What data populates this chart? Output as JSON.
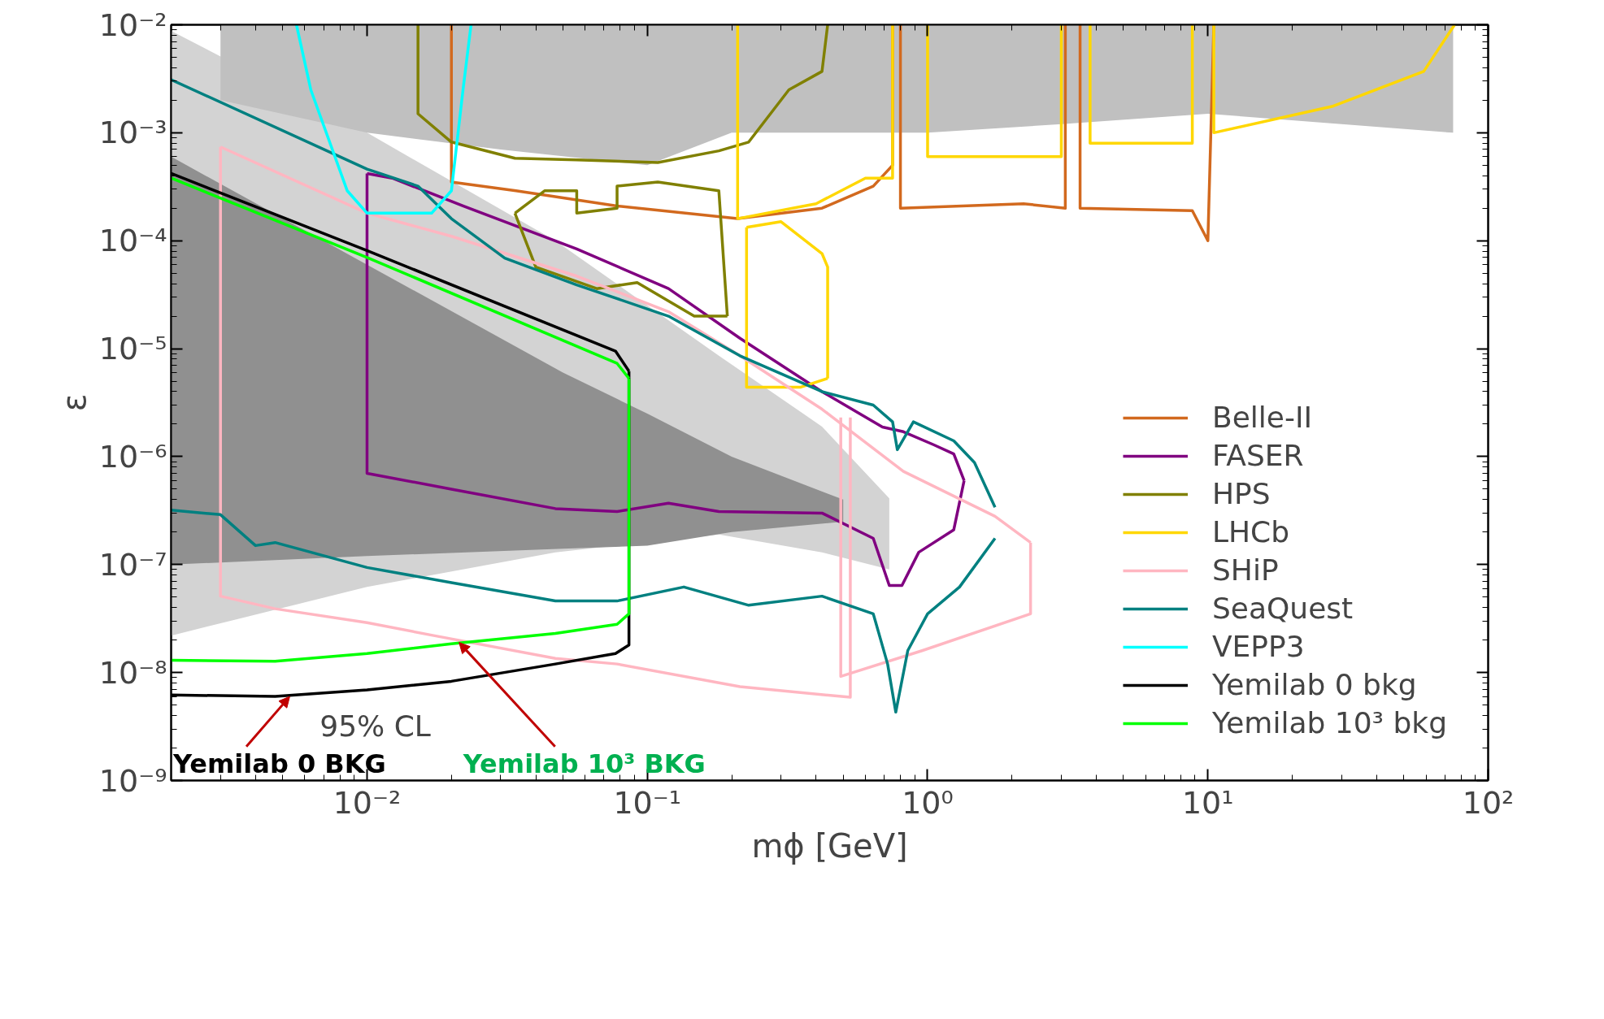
{
  "chart_data": {
    "type": "line",
    "xlabel": "mϕ [GeV]",
    "ylabel": "ε",
    "log": "xy",
    "xlim": [
      0.002,
      100
    ],
    "ylim": [
      1e-09,
      0.01
    ],
    "xticks": [
      {
        "value": 0.01,
        "label": "10⁻²"
      },
      {
        "value": 0.1,
        "label": "10⁻¹"
      },
      {
        "value": 1,
        "label": "10⁰"
      },
      {
        "value": 10,
        "label": "10¹"
      },
      {
        "value": 100,
        "label": "10²"
      }
    ],
    "yticks": [
      {
        "value": 1e-09,
        "label": "10⁻⁹"
      },
      {
        "value": 1e-08,
        "label": "10⁻⁸"
      },
      {
        "value": 1e-07,
        "label": "10⁻⁷"
      },
      {
        "value": 1e-06,
        "label": "10⁻⁶"
      },
      {
        "value": 1e-05,
        "label": "10⁻⁵"
      },
      {
        "value": 0.0001,
        "label": "10⁻⁴"
      },
      {
        "value": 0.001,
        "label": "10⁻³"
      },
      {
        "value": 0.01,
        "label": "10⁻²"
      }
    ],
    "legend": "bottom right",
    "grid": false,
    "series": [
      {
        "type": "area",
        "color": "#d3d3d3",
        "x": [
          0.002,
          0.01,
          0.047,
          0.18,
          0.42,
          0.73
        ],
        "values": [
          null,
          null,
          null,
          null,
          null,
          null
        ],
        "upper": [
          0.0088,
          0.001,
          0.0001,
          8.6e-06,
          1.9e-06,
          4.1e-07
        ],
        "lower": [
          2.2e-08,
          6.2e-08,
          1.3e-07,
          1.9e-07,
          1.3e-07,
          9e-08
        ]
      },
      {
        "type": "area",
        "color": "#c0c0c0",
        "x": [
          0.003,
          0.01,
          0.03,
          0.1,
          0.2,
          0.5,
          1,
          3,
          10,
          30,
          75
        ],
        "values": [
          null,
          null,
          null,
          null,
          null,
          null,
          null,
          null,
          null,
          null,
          null
        ],
        "upper": [
          0.01,
          0.01,
          0.01,
          0.01,
          0.01,
          0.01,
          0.01,
          0.01,
          0.01,
          0.01,
          0.01
        ],
        "lower": [
          0.002,
          0.001,
          0.0007,
          0.0005,
          0.001,
          0.001,
          0.001,
          0.0012,
          0.0015,
          0.0012,
          0.001
        ]
      },
      {
        "type": "area",
        "color": "#909090",
        "x": [
          0.002,
          0.01,
          0.05,
          0.1,
          0.2,
          0.5
        ],
        "values": [
          null,
          null,
          null,
          null,
          null,
          null
        ],
        "upper": [
          0.0006,
          6e-05,
          6e-06,
          2.5e-06,
          1e-06,
          4e-07
        ],
        "lower": [
          1e-07,
          1.2e-07,
          1.4e-07,
          1.5e-07,
          2e-07,
          2.5e-07
        ]
      },
      {
        "name": "Belle-II",
        "color": "#d2691e",
        "x": [
          0.02,
          0.02,
          0.034,
          0.078,
          0.21,
          0.42,
          0.64,
          0.75,
          0.75,
          null,
          0.8,
          0.8,
          2.2,
          3.1,
          3.1,
          null,
          3.5,
          3.5,
          8.8,
          10,
          10.5
        ],
        "values": [
          0.01,
          0.00035,
          0.00029,
          0.00021,
          0.00016,
          0.0002,
          0.00032,
          0.0005,
          0.01,
          null,
          0.01,
          0.0002,
          0.00022,
          0.0002,
          0.01,
          null,
          0.01,
          0.0002,
          0.00019,
          0.0001,
          0.01
        ]
      },
      {
        "name": "FASER",
        "color": "#800080",
        "x": [
          0.01,
          0.01,
          0.02,
          0.047,
          0.078,
          0.119,
          0.18,
          0.42,
          0.64,
          0.73,
          0.81,
          0.93,
          1.24,
          1.35
        ],
        "values": [
          0.00042,
          7e-07,
          5e-07,
          3.3e-07,
          3.1e-07,
          3.7e-07,
          3.1e-07,
          3e-07,
          1.75e-07,
          6.4e-08,
          6.4e-08,
          1.3e-07,
          2.1e-07,
          6e-07
        ]
      },
      {
        "color": "#800080",
        "x": [
          0.01,
          0.0123,
          0.022,
          0.056,
          0.119,
          0.214,
          0.42,
          0.69,
          0.82,
          1.05,
          1.24,
          1.35
        ],
        "values": [
          0.00042,
          0.00038,
          0.00021,
          8.4e-05,
          3.6e-05,
          1.25e-05,
          4e-06,
          1.88e-06,
          1.7e-06,
          1.29e-06,
          1.06e-06,
          6e-07
        ]
      },
      {
        "name": "HPS",
        "color": "#808000",
        "x": [
          0.0152,
          0.0152,
          0.02,
          0.0337,
          0.056,
          0.109,
          0.18,
          0.23,
          0.32,
          0.42,
          0.44
        ],
        "values": [
          0.01,
          0.0015,
          0.00082,
          0.00058,
          0.00056,
          0.00053,
          0.00068,
          0.00082,
          0.0025,
          0.0037,
          0.01
        ]
      },
      {
        "color": "#808000",
        "x": [
          0.0337,
          0.043,
          0.056,
          0.056,
          0.078,
          0.078,
          0.109,
          0.18,
          0.193
        ],
        "values": [
          0.00018,
          0.00029,
          0.00029,
          0.00018,
          0.0002,
          0.00032,
          0.00035,
          0.00029,
          2e-05
        ]
      },
      {
        "color": "#808000",
        "x": [
          0.0337,
          0.04,
          0.066,
          0.092,
          0.147,
          0.193
        ],
        "values": [
          0.00018,
          5.7e-05,
          3.6e-05,
          4.1e-05,
          2e-05,
          2e-05
        ]
      },
      {
        "name": "LHCb",
        "color": "#ffd700",
        "x": [
          0.21,
          0.21,
          0.4,
          0.6,
          0.75,
          0.75,
          null,
          1,
          1,
          3,
          3,
          null,
          3.8,
          3.8,
          8.8,
          8.8,
          null,
          10.5,
          10.5,
          27.7,
          58.9,
          75.9
        ],
        "values": [
          0.01,
          0.00016,
          0.00022,
          0.00038,
          0.00038,
          0.01,
          null,
          0.01,
          0.0006,
          0.0006,
          0.01,
          null,
          0.01,
          0.0008,
          0.0008,
          0.01,
          null,
          0.01,
          0.001,
          0.00175,
          0.0037,
          0.01
        ]
      },
      {
        "color": "#ffd700",
        "x": [
          0.226,
          0.3,
          0.42,
          0.44,
          0.44
        ],
        "values": [
          0.000133,
          0.00015,
          7.6e-05,
          5.7e-05,
          5.3e-06
        ]
      },
      {
        "color": "#ffd700",
        "x": [
          0.226,
          0.226,
          0.353,
          0.44
        ],
        "values": [
          0.000133,
          4.4e-06,
          4.4e-06,
          5.3e-06
        ]
      },
      {
        "name": "SHiP",
        "color": "#ffb6c1",
        "x": [
          0.003,
          0.003,
          0.0047,
          0.01,
          0.0173,
          0.047,
          0.078,
          0.214,
          0.53,
          0.53
        ],
        "values": [
          0.00074,
          5.1e-08,
          3.9e-08,
          2.9e-08,
          2.2e-08,
          1.35e-08,
          1.2e-08,
          7.4e-09,
          5.9e-09,
          2.3e-06
        ]
      },
      {
        "color": "#ffb6c1",
        "x": [
          0.49,
          0.49,
          0.96,
          2.33,
          2.33
        ],
        "values": [
          2.3e-06,
          9.2e-09,
          1.6e-08,
          3.5e-08,
          1.6e-07
        ]
      },
      {
        "color": "#ffb6c1",
        "x": [
          0.003,
          0.01,
          0.02,
          0.056,
          0.119,
          0.214,
          0.42,
          0.82,
          1.74,
          2.33
        ],
        "values": [
          0.00074,
          0.00018,
          0.00011,
          4.7e-05,
          2.2e-05,
          8.6e-06,
          2.75e-06,
          7.3e-07,
          2.8e-07,
          1.6e-07
        ]
      },
      {
        "name": "SeaQuest",
        "color": "#008080",
        "x": [
          0.002,
          0.01,
          0.0152,
          0.02,
          0.031,
          0.056,
          0.119,
          0.214,
          0.42,
          0.64,
          0.75,
          0.78,
          0.89,
          1.24,
          1.47,
          1.74
        ],
        "values": [
          0.0031,
          0.00046,
          0.00032,
          0.00016,
          6.9e-05,
          3.9e-05,
          2e-05,
          8.6e-06,
          4e-06,
          3e-06,
          2.1e-06,
          1.16e-06,
          2.1e-06,
          1.4e-06,
          8.8e-07,
          3.4e-07
        ]
      },
      {
        "color": "#008080",
        "x": [
          0.002,
          0.003,
          0.004,
          0.0047,
          0.01,
          0.02,
          0.047,
          0.078,
          0.135,
          0.23,
          0.42,
          0.64,
          0.72,
          0.77,
          0.85,
          1,
          1.3,
          1.74
        ],
        "values": [
          3.2e-07,
          2.9e-07,
          1.5e-07,
          1.6e-07,
          9.4e-08,
          6.8e-08,
          4.6e-08,
          4.6e-08,
          6.2e-08,
          4.2e-08,
          5.1e-08,
          3.5e-08,
          1.2e-08,
          4.3e-09,
          1.6e-08,
          3.5e-08,
          6.2e-08,
          1.75e-07
        ]
      },
      {
        "name": "VEPP3",
        "color": "#00ffff",
        "x": [
          0.0056,
          0.0063,
          0.0085,
          0.01,
          0.017,
          0.02,
          0.022,
          0.0235
        ],
        "values": [
          0.01,
          0.0025,
          0.00029,
          0.00018,
          0.00018,
          0.00029,
          0.0025,
          0.01
        ]
      },
      {
        "name": "Yemilab 0 bkg",
        "color": "#000000",
        "x": [
          0.002,
          0.0047,
          0.01,
          0.02,
          0.047,
          0.077,
          0.086,
          0.086
        ],
        "values": [
          6.2e-09,
          6e-09,
          6.9e-09,
          8.3e-09,
          1.2e-08,
          1.5e-08,
          1.8e-08,
          6.2e-06
        ]
      },
      {
        "color": "#000000",
        "x": [
          0.002,
          0.01,
          0.077,
          0.086
        ],
        "values": [
          0.00042,
          8.1e-05,
          9.5e-06,
          6.2e-06
        ]
      },
      {
        "name": "Yemilab 10³ bkg",
        "color": "#00ff00",
        "x": [
          0.002,
          0.0047,
          0.01,
          0.02,
          0.047,
          0.078,
          0.086,
          0.086
        ],
        "values": [
          1.3e-08,
          1.27e-08,
          1.5e-08,
          1.85e-08,
          2.3e-08,
          2.8e-08,
          3.5e-08,
          5.3e-06
        ]
      },
      {
        "color": "#00ff00",
        "x": [
          0.002,
          0.01,
          0.078,
          0.086
        ],
        "values": [
          0.00038,
          7e-05,
          7.3e-06,
          5.3e-06
        ]
      }
    ],
    "annotations": [
      "95% CL",
      {
        "text": "Yemilab 0 BKG",
        "x": 0.0053,
        "y": 6e-09
      },
      {
        "text": "Yemilab 10³ BKG",
        "x": 0.0213,
        "y": 1.9e-08
      }
    ]
  }
}
